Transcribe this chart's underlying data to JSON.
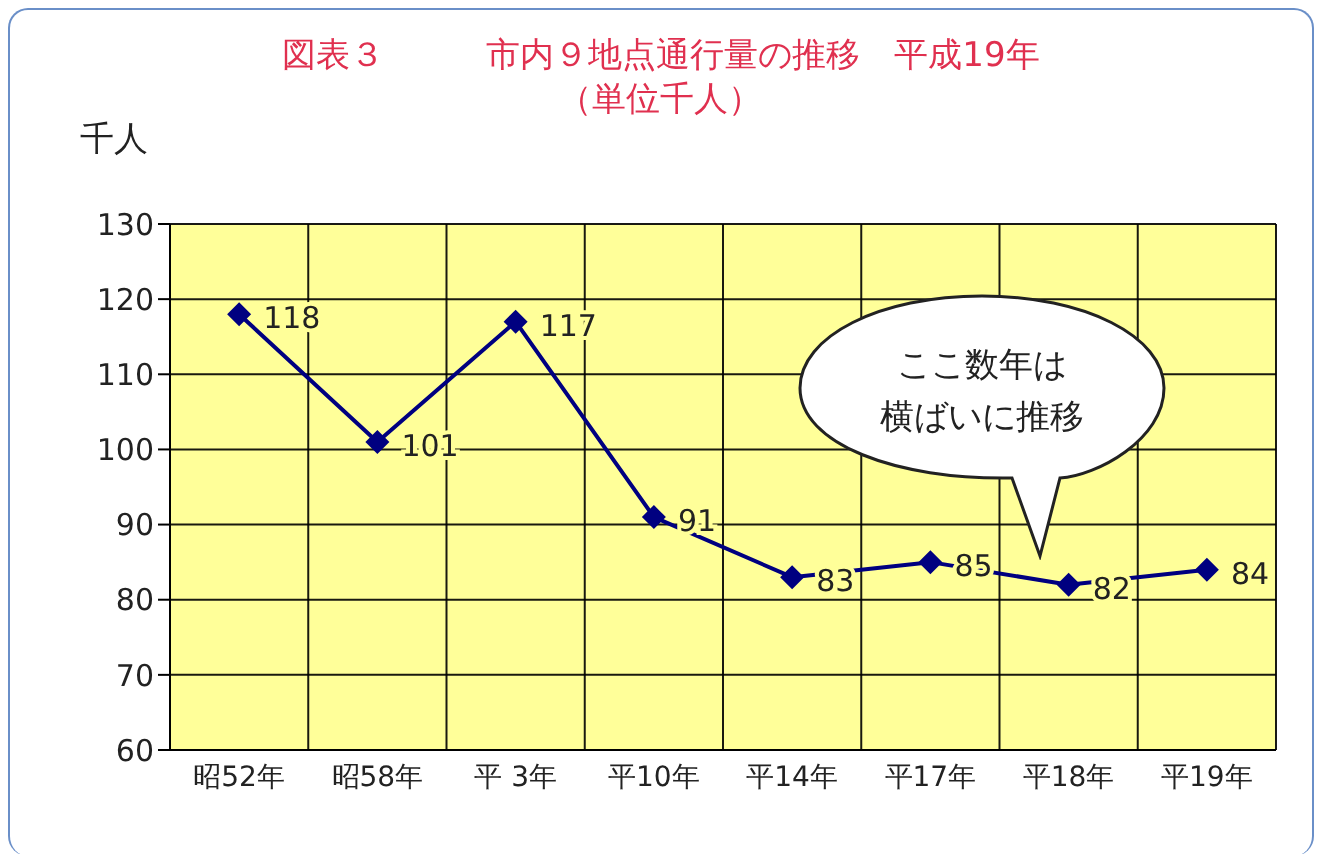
{
  "chart_data": {
    "type": "line",
    "title": "図表３　　　市内９地点通行量の推移　平成19年",
    "subtitle": "（単位千人）",
    "ylabel": "千人",
    "categories": [
      "昭52年",
      "昭58年",
      "平 3年",
      "平10年",
      "平14年",
      "平17年",
      "平18年",
      "平19年"
    ],
    "series": [
      {
        "color": "#000080",
        "values": [
          118,
          101,
          117,
          91,
          83,
          85,
          82,
          84
        ]
      }
    ],
    "ylim": [
      60,
      130
    ],
    "yticks": [
      60,
      70,
      80,
      90,
      100,
      110,
      120,
      130
    ],
    "grid": true,
    "marker": "diamond",
    "data_labels": true,
    "annotations": [
      "ここ数年は",
      "横ばいに推移"
    ]
  }
}
